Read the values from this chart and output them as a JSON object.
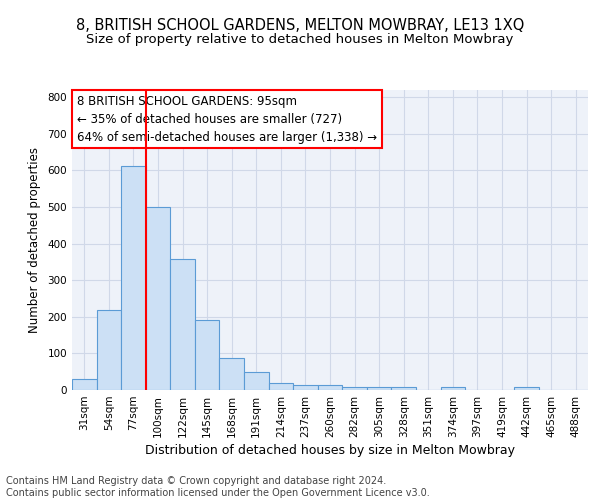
{
  "title": "8, BRITISH SCHOOL GARDENS, MELTON MOWBRAY, LE13 1XQ",
  "subtitle": "Size of property relative to detached houses in Melton Mowbray",
  "xlabel": "Distribution of detached houses by size in Melton Mowbray",
  "ylabel": "Number of detached properties",
  "categories": [
    "31sqm",
    "54sqm",
    "77sqm",
    "100sqm",
    "122sqm",
    "145sqm",
    "168sqm",
    "191sqm",
    "214sqm",
    "237sqm",
    "260sqm",
    "282sqm",
    "305sqm",
    "328sqm",
    "351sqm",
    "374sqm",
    "397sqm",
    "419sqm",
    "442sqm",
    "465sqm",
    "488sqm"
  ],
  "values": [
    30,
    218,
    613,
    500,
    357,
    190,
    88,
    50,
    20,
    14,
    13,
    7,
    7,
    7,
    0,
    7,
    0,
    0,
    7,
    0,
    0
  ],
  "bar_color": "#cce0f5",
  "bar_edge_color": "#5b9bd5",
  "red_line_x": 2.5,
  "annotation_text_line1": "8 BRITISH SCHOOL GARDENS: 95sqm",
  "annotation_text_line2": "← 35% of detached houses are smaller (727)",
  "annotation_text_line3": "64% of semi-detached houses are larger (1,338) →",
  "ylim": [
    0,
    820
  ],
  "yticks": [
    0,
    100,
    200,
    300,
    400,
    500,
    600,
    700,
    800
  ],
  "grid_color": "#d0d8e8",
  "background_color": "#eef2f9",
  "footer_text": "Contains HM Land Registry data © Crown copyright and database right 2024.\nContains public sector information licensed under the Open Government Licence v3.0.",
  "title_fontsize": 10.5,
  "subtitle_fontsize": 9.5,
  "xlabel_fontsize": 9,
  "ylabel_fontsize": 8.5,
  "tick_fontsize": 7.5,
  "annotation_fontsize": 8.5,
  "footer_fontsize": 7
}
